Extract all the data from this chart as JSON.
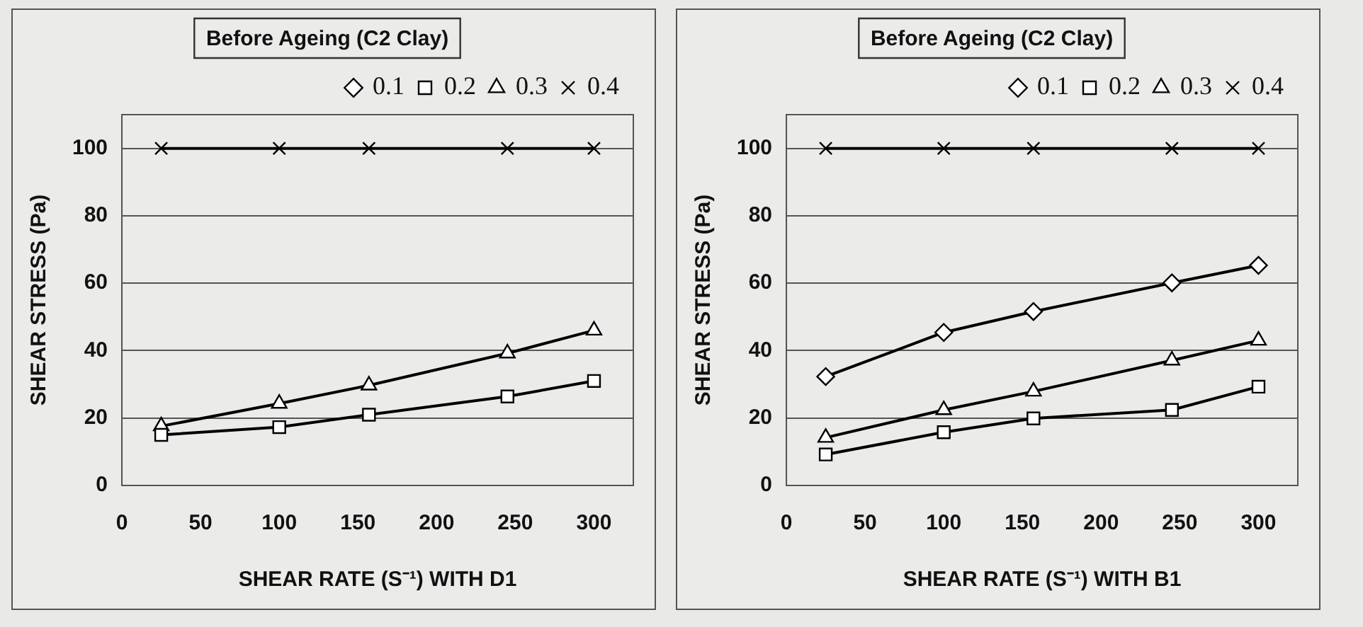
{
  "chart_data": [
    {
      "type": "line",
      "title": "Before Ageing (C2 Clay)",
      "xlabel": "SHEAR RATE (S⁻¹) WITH D1",
      "ylabel": "SHEAR STRESS (Pa)",
      "x": [
        25,
        100,
        157,
        245,
        300
      ],
      "xlim": [
        0,
        325
      ],
      "xticks": [
        0,
        50,
        100,
        150,
        200,
        250,
        300
      ],
      "ylim": [
        0,
        110
      ],
      "yticks": [
        0,
        20,
        40,
        60,
        80,
        100
      ],
      "grid": "y",
      "legend": "top right",
      "series": [
        {
          "name": "0.1",
          "color": "#000000",
          "marker": "diamond",
          "values": [
            null,
            null,
            null,
            null,
            null
          ]
        },
        {
          "name": "0.2",
          "color": "#000000",
          "marker": "square",
          "values": [
            15,
            17.3,
            21,
            26.4,
            31
          ]
        },
        {
          "name": "0.3",
          "color": "#000000",
          "marker": "triangle",
          "values": [
            17.6,
            24.3,
            29.7,
            39.2,
            46
          ]
        },
        {
          "name": "0.4",
          "color": "#000000",
          "marker": "cross",
          "values": [
            100,
            100,
            100,
            100,
            100
          ]
        }
      ]
    },
    {
      "type": "line",
      "title": "Before Ageing (C2 Clay)",
      "xlabel": "SHEAR RATE (S⁻¹) WITH B1",
      "ylabel": "SHEAR STRESS (Pa)",
      "x": [
        25,
        100,
        157,
        245,
        300
      ],
      "xlim": [
        0,
        325
      ],
      "xticks": [
        0,
        50,
        100,
        150,
        200,
        250,
        300
      ],
      "ylim": [
        0,
        110
      ],
      "yticks": [
        0,
        20,
        40,
        60,
        80,
        100
      ],
      "grid": "y",
      "legend": "top right",
      "series": [
        {
          "name": "0.1",
          "color": "#000000",
          "marker": "diamond",
          "values": [
            32.3,
            45.4,
            51.6,
            60.1,
            65.3
          ]
        },
        {
          "name": "0.2",
          "color": "#000000",
          "marker": "square",
          "values": [
            9.2,
            15.8,
            19.9,
            22.4,
            29.3
          ]
        },
        {
          "name": "0.3",
          "color": "#000000",
          "marker": "triangle",
          "values": [
            14.2,
            22.4,
            27.9,
            37.1,
            43
          ]
        },
        {
          "name": "0.4",
          "color": "#000000",
          "marker": "cross",
          "values": [
            100,
            100,
            100,
            100,
            100
          ]
        }
      ]
    }
  ]
}
